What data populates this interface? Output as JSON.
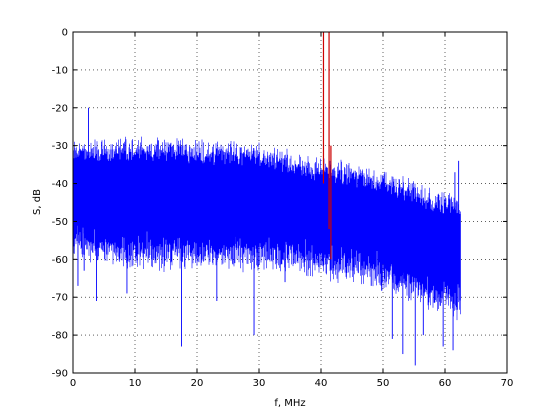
{
  "chart_data": {
    "type": "line",
    "title": "",
    "xlabel": "f, MHz",
    "ylabel": "S, dB",
    "xlim": [
      0,
      70
    ],
    "ylim": [
      -90,
      0
    ],
    "xticks": [
      0,
      10,
      20,
      30,
      40,
      50,
      60,
      70
    ],
    "yticks": [
      -90,
      -80,
      -70,
      -60,
      -50,
      -40,
      -30,
      -20,
      -10,
      0
    ],
    "xtick_labels": [
      "0",
      "10",
      "20",
      "30",
      "40",
      "50",
      "60",
      "70"
    ],
    "ytick_labels": [
      "-90",
      "-80",
      "-70",
      "-60",
      "-50",
      "-40",
      "-30",
      "-20",
      "-10",
      "0"
    ],
    "grid": true,
    "grid_style": "dotted",
    "legend": "none",
    "series": [
      {
        "color": "#0000ff",
        "style": "dense noise spectrum between envelopes",
        "x_range": [
          0,
          62.5
        ],
        "upper_envelope": {
          "x": [
            0,
            5,
            10,
            15,
            20,
            25,
            30,
            35,
            40,
            45,
            50,
            55,
            58,
            60,
            62.5
          ],
          "y": [
            -29,
            -29,
            -28,
            -28,
            -29,
            -29,
            -30,
            -32,
            -34,
            -35,
            -37,
            -40,
            -42,
            -43,
            -44
          ]
        },
        "lower_envelope": {
          "x": [
            0,
            5,
            10,
            15,
            20,
            25,
            30,
            35,
            40,
            45,
            50,
            55,
            58,
            60,
            62.5
          ],
          "y": [
            -60,
            -63,
            -64,
            -64,
            -63,
            -64,
            -64,
            -64,
            -66,
            -67,
            -69,
            -72,
            -75,
            -75,
            -77
          ]
        },
        "spikes": [
          {
            "x": 2.5,
            "y": -20
          },
          {
            "x": 0.8,
            "y": -67
          },
          {
            "x": 1.8,
            "y": -63
          },
          {
            "x": 3.8,
            "y": -71
          },
          {
            "x": 8.7,
            "y": -69
          },
          {
            "x": 12.7,
            "y": -60
          },
          {
            "x": 17.5,
            "y": -83
          },
          {
            "x": 23.2,
            "y": -71
          },
          {
            "x": 26.1,
            "y": -61
          },
          {
            "x": 29.2,
            "y": -80
          },
          {
            "x": 34.2,
            "y": -66
          },
          {
            "x": 48.1,
            "y": -67
          },
          {
            "x": 51.5,
            "y": -81
          },
          {
            "x": 53.2,
            "y": -85
          },
          {
            "x": 55.2,
            "y": -88
          },
          {
            "x": 56.5,
            "y": -80
          },
          {
            "x": 59.7,
            "y": -83
          },
          {
            "x": 61.3,
            "y": -84
          },
          {
            "x": 62.2,
            "y": -34
          },
          {
            "x": 61.6,
            "y": -37
          }
        ]
      },
      {
        "color": "#cc0000",
        "style": "narrow peak",
        "segments": [
          {
            "x": 40.4,
            "y": [
              -40,
              0
            ]
          },
          {
            "x": 41.3,
            "y": [
              -52,
              0
            ]
          },
          {
            "x": 41.6,
            "y": [
              -30,
              -60
            ]
          }
        ]
      }
    ]
  }
}
